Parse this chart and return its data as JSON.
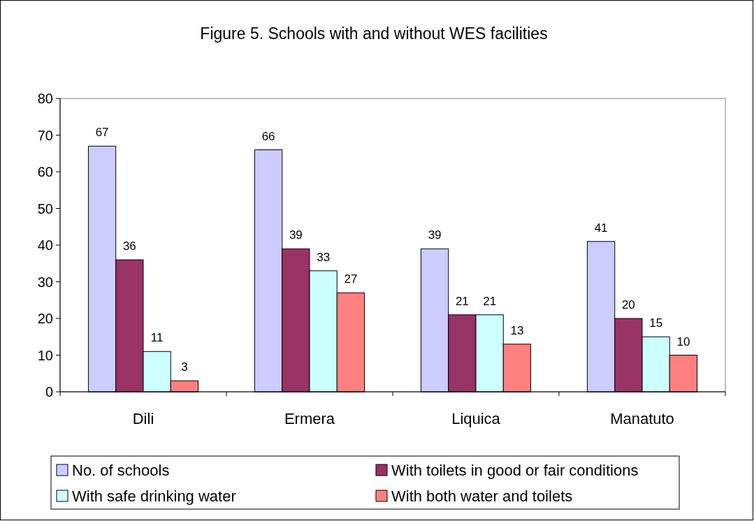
{
  "chart_data": {
    "type": "bar",
    "title": "Figure 5. Schools with and without WES facilities",
    "categories": [
      "Dili",
      "Ermera",
      "Liquica",
      "Manatuto"
    ],
    "series": [
      {
        "name": "No. of schools",
        "color": "#ccccff",
        "values": [
          67,
          66,
          39,
          41
        ]
      },
      {
        "name": "With toilets in good or fair conditions",
        "color": "#993366",
        "values": [
          36,
          39,
          21,
          20
        ]
      },
      {
        "name": "With safe drinking water",
        "color": "#ccffff",
        "values": [
          11,
          33,
          21,
          15
        ]
      },
      {
        "name": "With both water and toilets",
        "color": "#ff8080",
        "values": [
          3,
          27,
          13,
          10
        ]
      }
    ],
    "ylim": [
      0,
      80
    ],
    "yticks": [
      0,
      10,
      20,
      30,
      40,
      50,
      60,
      70,
      80
    ],
    "grid": false,
    "legend": "bottom",
    "data_labels": true
  }
}
